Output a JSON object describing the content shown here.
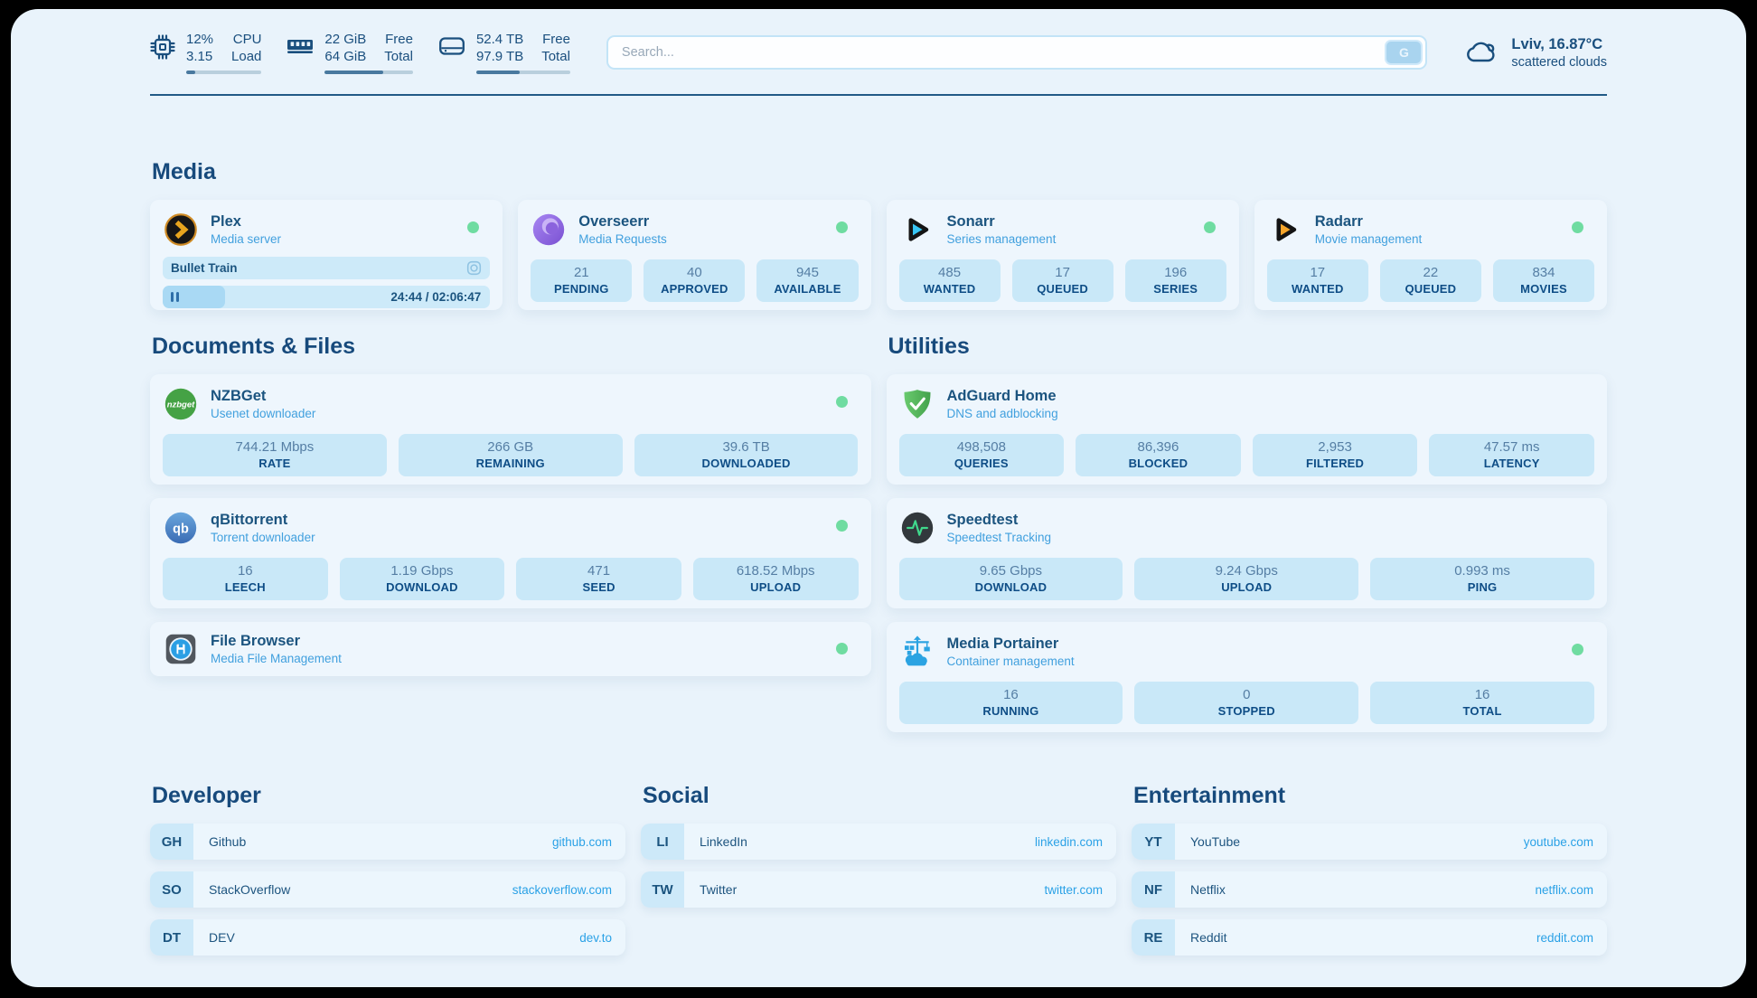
{
  "topbar": {
    "cpu": {
      "value1": "12%",
      "value2": "3.15",
      "label1": "CPU",
      "label2": "Load",
      "progress": 12
    },
    "memory": {
      "value1": "22 GiB",
      "value2": "64 GiB",
      "label1": "Free",
      "label2": "Total",
      "progress": 66
    },
    "disk": {
      "value1": "52.4 TB",
      "value2": "97.9 TB",
      "label1": "Free",
      "label2": "Total",
      "progress": 46
    },
    "search": {
      "placeholder": "Search...",
      "button": "G"
    },
    "weather": {
      "line1": "Lviv, 16.87°C",
      "line2": "scattered clouds"
    }
  },
  "sections": {
    "media": "Media",
    "documents": "Documents & Files",
    "utilities": "Utilities",
    "developer": "Developer",
    "social": "Social",
    "entertainment": "Entertainment"
  },
  "services": {
    "plex": {
      "name": "Plex",
      "desc": "Media server",
      "now_playing": "Bullet Train",
      "time": "24:44 / 02:06:47",
      "progress": 19
    },
    "overseerr": {
      "name": "Overseerr",
      "desc": "Media Requests",
      "stats": [
        {
          "value": "21",
          "label": "PENDING"
        },
        {
          "value": "40",
          "label": "APPROVED"
        },
        {
          "value": "945",
          "label": "AVAILABLE"
        }
      ]
    },
    "sonarr": {
      "name": "Sonarr",
      "desc": "Series management",
      "stats": [
        {
          "value": "485",
          "label": "WANTED"
        },
        {
          "value": "17",
          "label": "QUEUED"
        },
        {
          "value": "196",
          "label": "SERIES"
        }
      ]
    },
    "radarr": {
      "name": "Radarr",
      "desc": "Movie management",
      "stats": [
        {
          "value": "17",
          "label": "WANTED"
        },
        {
          "value": "22",
          "label": "QUEUED"
        },
        {
          "value": "834",
          "label": "MOVIES"
        }
      ]
    },
    "nzbget": {
      "name": "NZBGet",
      "desc": "Usenet downloader",
      "icon_text": "nzbget",
      "stats": [
        {
          "value": "744.21 Mbps",
          "label": "RATE"
        },
        {
          "value": "266 GB",
          "label": "REMAINING"
        },
        {
          "value": "39.6 TB",
          "label": "DOWNLOADED"
        }
      ]
    },
    "qbittorrent": {
      "name": "qBittorrent",
      "desc": "Torrent downloader",
      "icon_text": "qb",
      "stats": [
        {
          "value": "16",
          "label": "LEECH"
        },
        {
          "value": "1.19 Gbps",
          "label": "DOWNLOAD"
        },
        {
          "value": "471",
          "label": "SEED"
        },
        {
          "value": "618.52 Mbps",
          "label": "UPLOAD"
        }
      ]
    },
    "filebrowser": {
      "name": "File Browser",
      "desc": "Media File Management"
    },
    "adguard": {
      "name": "AdGuard Home",
      "desc": "DNS and adblocking",
      "stats": [
        {
          "value": "498,508",
          "label": "QUERIES"
        },
        {
          "value": "86,396",
          "label": "BLOCKED"
        },
        {
          "value": "2,953",
          "label": "FILTERED"
        },
        {
          "value": "47.57 ms",
          "label": "LATENCY"
        }
      ]
    },
    "speedtest": {
      "name": "Speedtest",
      "desc": "Speedtest Tracking",
      "stats": [
        {
          "value": "9.65 Gbps",
          "label": "DOWNLOAD"
        },
        {
          "value": "9.24 Gbps",
          "label": "UPLOAD"
        },
        {
          "value": "0.993 ms",
          "label": "PING"
        }
      ]
    },
    "portainer": {
      "name": "Media Portainer",
      "desc": "Container management",
      "stats": [
        {
          "value": "16",
          "label": "RUNNING"
        },
        {
          "value": "0",
          "label": "STOPPED"
        },
        {
          "value": "16",
          "label": "TOTAL"
        }
      ]
    }
  },
  "bookmarks": {
    "developer": [
      {
        "abbr": "GH",
        "name": "Github",
        "url": "github.com"
      },
      {
        "abbr": "SO",
        "name": "StackOverflow",
        "url": "stackoverflow.com"
      },
      {
        "abbr": "DT",
        "name": "DEV",
        "url": "dev.to"
      }
    ],
    "social": [
      {
        "abbr": "LI",
        "name": "LinkedIn",
        "url": "linkedin.com"
      },
      {
        "abbr": "TW",
        "name": "Twitter",
        "url": "twitter.com"
      }
    ],
    "entertainment": [
      {
        "abbr": "YT",
        "name": "YouTube",
        "url": "youtube.com"
      },
      {
        "abbr": "NF",
        "name": "Netflix",
        "url": "netflix.com"
      },
      {
        "abbr": "RE",
        "name": "Reddit",
        "url": "reddit.com"
      }
    ]
  },
  "icons": {
    "cpu": "cpu-chip-icon",
    "memory": "ram-icon",
    "disk": "hard-drive-icon",
    "weather": "cloud-icon",
    "plex_row": "camera-icon",
    "plex_state": "pause-icon",
    "status": "status-online-dot"
  },
  "colors": {
    "accent": "#2aa1e6",
    "status_ok": "#6fdca1",
    "navy": "#1a4f7e",
    "page_bg": "#e9f3fb",
    "card_bg": "#eef6fd",
    "stat_bg": "#c9e8f8"
  }
}
